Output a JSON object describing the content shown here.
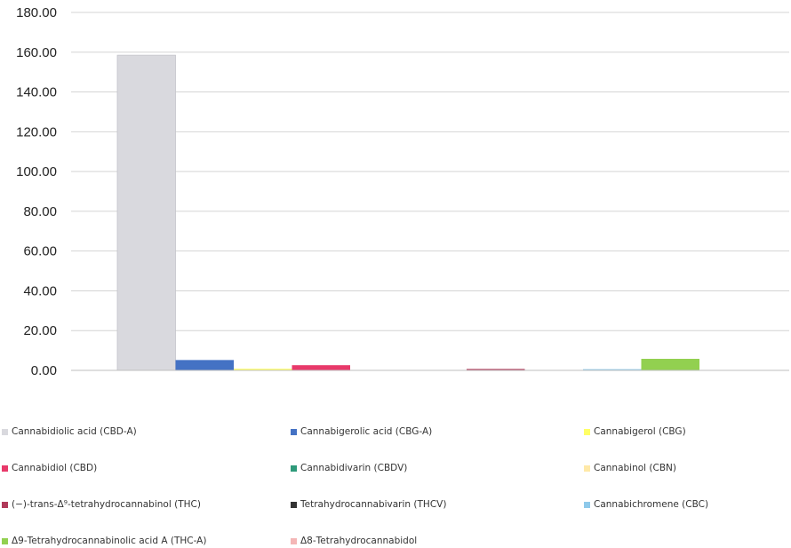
{
  "chart_data": {
    "type": "bar",
    "ylim": [
      0,
      180
    ],
    "yticks": [
      "0.00",
      "20.00",
      "40.00",
      "60.00",
      "80.00",
      "100.00",
      "120.00",
      "140.00",
      "160.00",
      "180.00"
    ],
    "grid": true,
    "legend_position": "bottom",
    "series": [
      {
        "name": "Cannabidiolic acid (CBD-A)",
        "value": 158.5,
        "color": "#d9d9de"
      },
      {
        "name": "Cannabigerolic acid (CBG-A)",
        "value": 5.2,
        "color": "#4472c4"
      },
      {
        "name": "Cannabigerol (CBG)",
        "value": 0.8,
        "color": "#ffff66"
      },
      {
        "name": "Cannabidiol (CBD)",
        "value": 2.6,
        "color": "#e8396a"
      },
      {
        "name": "Cannabidivarin (CBDV)",
        "value": 0.0,
        "color": "#2e9a7a"
      },
      {
        "name": "Cannabinol (CBN)",
        "value": 0.0,
        "color": "#ffe9a8"
      },
      {
        "name": "(−)-trans-Δ⁹-tetrahydrocannabinol (THC)",
        "value": 0.7,
        "color": "#b03a5a"
      },
      {
        "name": "Tetrahydrocannabivarin (THCV)",
        "value": 0.0,
        "color": "#333333"
      },
      {
        "name": "Cannabichromene (CBC)",
        "value": 0.6,
        "color": "#8ec9ea"
      },
      {
        "name": "Δ9-Tetrahydrocannabinolic acid A (THC-A)",
        "value": 5.8,
        "color": "#92d050"
      },
      {
        "name": "Δ8-Tetrahydrocannabidol",
        "value": 0.0,
        "color": "#f4b6b6"
      }
    ]
  }
}
